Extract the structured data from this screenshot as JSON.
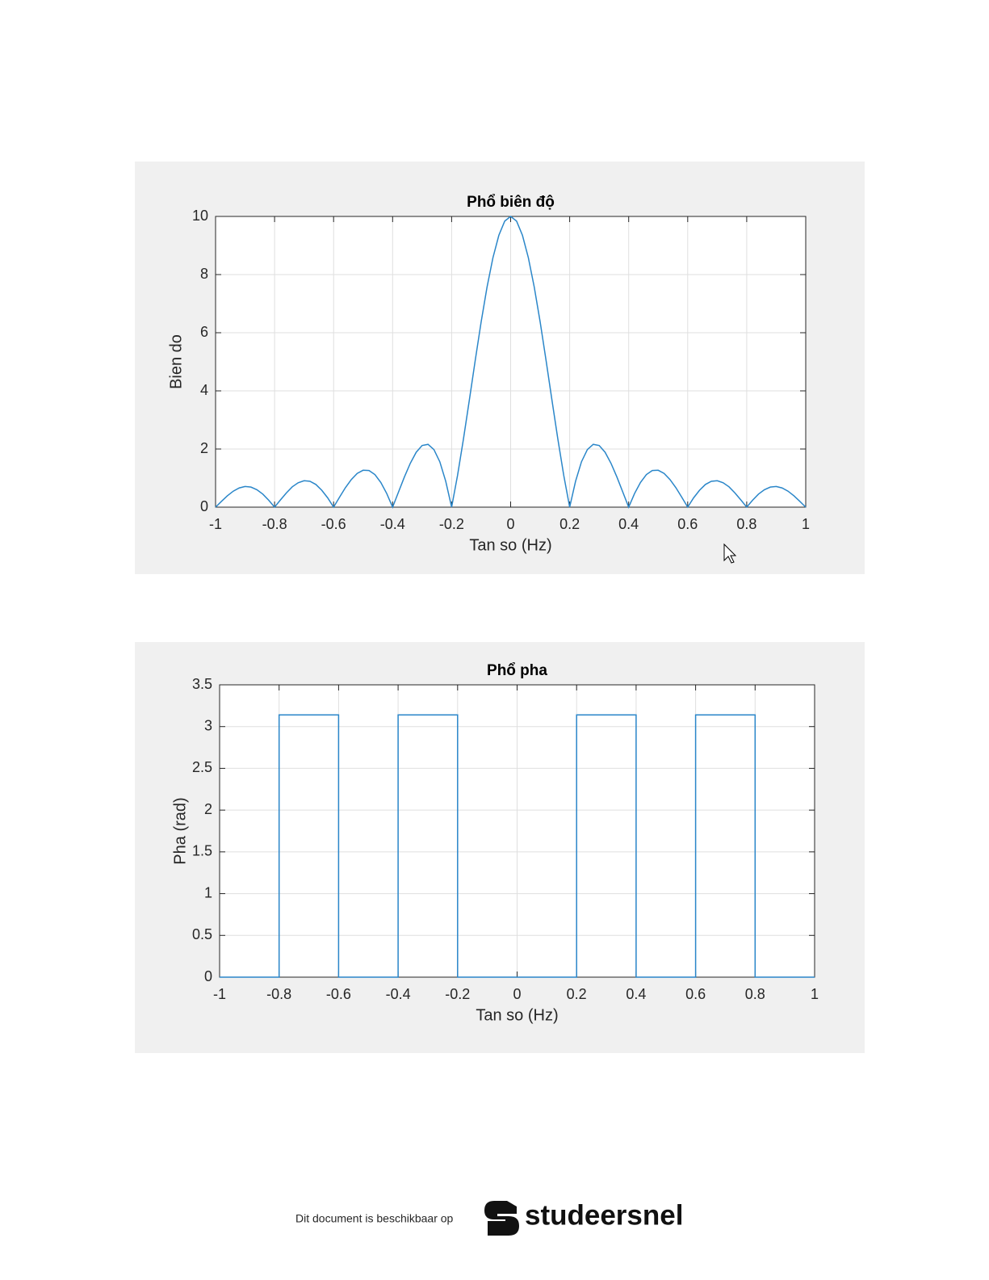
{
  "chart_data": [
    {
      "type": "line",
      "title": "Phổ biên độ",
      "xlabel": "Tan so (Hz)",
      "ylabel": "Bien do",
      "color": "#2a86c9",
      "grid": true,
      "x": [
        -1,
        -0.98,
        -0.96,
        -0.94,
        -0.92,
        -0.9,
        -0.88,
        -0.86,
        -0.84,
        -0.82,
        -0.8,
        -0.78,
        -0.76,
        -0.74,
        -0.72,
        -0.7,
        -0.68,
        -0.66,
        -0.64,
        -0.62,
        -0.6,
        -0.58,
        -0.56,
        -0.54,
        -0.52,
        -0.5,
        -0.48,
        -0.46,
        -0.44,
        -0.42,
        -0.4,
        -0.38,
        -0.36,
        -0.34,
        -0.32,
        -0.3,
        -0.28,
        -0.26,
        -0.24,
        -0.22,
        -0.2,
        -0.18,
        -0.16,
        -0.14,
        -0.12,
        -0.1,
        -0.08,
        -0.06,
        -0.04,
        -0.02,
        0,
        0.02,
        0.04,
        0.06,
        0.08,
        0.1,
        0.12,
        0.14,
        0.16,
        0.18,
        0.2,
        0.22,
        0.24,
        0.26,
        0.28,
        0.3,
        0.32,
        0.34,
        0.36,
        0.38,
        0.4,
        0.42,
        0.44,
        0.46,
        0.48,
        0.5,
        0.52,
        0.54,
        0.56,
        0.58,
        0.6,
        0.62,
        0.64,
        0.66,
        0.68,
        0.7,
        0.72,
        0.74,
        0.76,
        0.78,
        0.8,
        0.82,
        0.84,
        0.86,
        0.88,
        0.9,
        0.92,
        0.94,
        0.96,
        0.98,
        1
      ],
      "values": [
        0,
        0.2,
        0.39,
        0.55,
        0.66,
        0.71,
        0.69,
        0.6,
        0.45,
        0.24,
        0,
        0.25,
        0.49,
        0.7,
        0.84,
        0.91,
        0.89,
        0.78,
        0.58,
        0.32,
        0,
        0.34,
        0.67,
        0.95,
        1.16,
        1.27,
        1.26,
        1.12,
        0.85,
        0.47,
        0,
        0.52,
        1.04,
        1.51,
        1.89,
        2.12,
        2.16,
        1.98,
        1.56,
        0.89,
        0,
        1.09,
        2.34,
        3.68,
        5.05,
        6.37,
        7.57,
        8.58,
        9.35,
        9.84,
        10,
        9.84,
        9.35,
        8.58,
        7.57,
        6.37,
        5.05,
        3.68,
        2.34,
        1.09,
        0,
        0.89,
        1.56,
        1.98,
        2.16,
        2.12,
        1.89,
        1.51,
        1.04,
        0.52,
        0,
        0.47,
        0.85,
        1.12,
        1.26,
        1.27,
        1.16,
        0.95,
        0.67,
        0.34,
        0,
        0.32,
        0.58,
        0.78,
        0.89,
        0.91,
        0.84,
        0.7,
        0.49,
        0.25,
        0,
        0.24,
        0.45,
        0.6,
        0.69,
        0.71,
        0.66,
        0.55,
        0.39,
        0.2,
        0
      ],
      "xlim": [
        -1,
        1
      ],
      "xticks": [
        -1,
        -0.8,
        -0.6,
        -0.4,
        -0.2,
        0,
        0.2,
        0.4,
        0.6,
        0.8,
        1
      ],
      "ylim": [
        0,
        10
      ],
      "yticks": [
        0,
        2,
        4,
        6,
        8,
        10
      ]
    },
    {
      "type": "line",
      "title": "Phổ pha",
      "xlabel": "Tan so (Hz)",
      "ylabel": "Pha (rad)",
      "color": "#2a86c9",
      "grid": true,
      "x": [
        -1,
        -0.8,
        -0.8,
        -0.6,
        -0.6,
        -0.4,
        -0.4,
        -0.2,
        -0.2,
        0.2,
        0.2,
        0.4,
        0.4,
        0.6,
        0.6,
        0.8,
        0.8,
        1
      ],
      "values": [
        0,
        0,
        3.14,
        3.14,
        0,
        0,
        3.14,
        3.14,
        0,
        0,
        3.14,
        3.14,
        0,
        0,
        3.14,
        3.14,
        0,
        0
      ],
      "xlim": [
        -1,
        1
      ],
      "xticks": [
        -1,
        -0.8,
        -0.6,
        -0.4,
        -0.2,
        0,
        0.2,
        0.4,
        0.6,
        0.8,
        1
      ],
      "ylim": [
        0,
        3.5
      ],
      "yticks": [
        0,
        0.5,
        1,
        1.5,
        2,
        2.5,
        3,
        3.5
      ]
    }
  ],
  "footer": {
    "text": "Dit document is beschikbaar op",
    "brand": "studeersnel"
  }
}
